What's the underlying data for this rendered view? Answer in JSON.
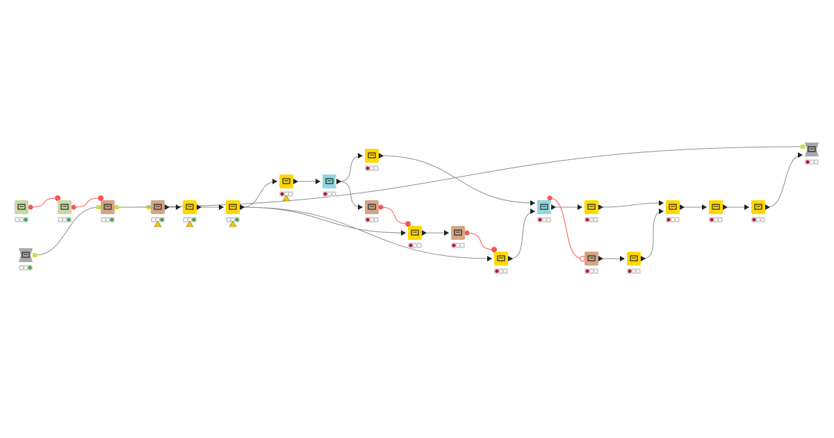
{
  "colors": {
    "source": "#c9d8a4",
    "manipulator": "#ffd800",
    "learner_predictor": "#d4a585",
    "loop": "#8ed8e0",
    "component_io": "#a8a8a8",
    "edge": "#8c8c8c",
    "flow_variable_edge": "#ff5050",
    "port_table": "#222222",
    "port_model": "#c8e03c",
    "status_red": "#c8103c",
    "status_green": "#3aa84a",
    "status_empty": "#ffffff",
    "warning": "#f0c800"
  },
  "nodes": [
    {
      "id": "n1",
      "kind": "source",
      "icon": "variable-source-icon",
      "status": "green"
    },
    {
      "id": "n2",
      "kind": "source",
      "icon": "variable-source-icon",
      "status": "green"
    },
    {
      "id": "n3",
      "kind": "learner_predictor",
      "icon": "model-learner-icon",
      "status": "green"
    },
    {
      "id": "n4",
      "kind": "component_io",
      "icon": "component-input-icon",
      "status": "green"
    },
    {
      "id": "n5",
      "kind": "learner_predictor",
      "icon": "predictor-icon",
      "status": "green",
      "warning": true
    },
    {
      "id": "n6",
      "kind": "manipulator",
      "icon": "splitter-icon",
      "status": "green",
      "warning": true
    },
    {
      "id": "n7",
      "kind": "manipulator",
      "icon": "column-rename-icon",
      "status": "green",
      "warning": true
    },
    {
      "id": "n8",
      "kind": "manipulator",
      "icon": "column-filter-icon",
      "status": "red",
      "warning": true
    },
    {
      "id": "n9",
      "kind": "loop",
      "icon": "loop-start-icon",
      "status": "red"
    },
    {
      "id": "n10",
      "kind": "manipulator",
      "icon": "group-by-icon",
      "status": "red"
    },
    {
      "id": "n11",
      "kind": "learner_predictor",
      "icon": "table-to-variable-icon",
      "status": "red"
    },
    {
      "id": "n12",
      "kind": "manipulator",
      "icon": "column-filter-icon",
      "status": "red"
    },
    {
      "id": "n13",
      "kind": "learner_predictor",
      "icon": "table-to-variable-icon",
      "status": "red"
    },
    {
      "id": "n14",
      "kind": "manipulator",
      "icon": "column-filter-icon",
      "status": "red"
    },
    {
      "id": "n15",
      "kind": "loop",
      "icon": "loop-end-icon",
      "status": "red"
    },
    {
      "id": "n16",
      "kind": "manipulator",
      "icon": "column-rename-icon",
      "status": "red"
    },
    {
      "id": "n17",
      "kind": "learner_predictor",
      "icon": "variable-to-table-icon",
      "status": "red"
    },
    {
      "id": "n18",
      "kind": "manipulator",
      "icon": "column-rename-icon",
      "status": "red"
    },
    {
      "id": "n19",
      "kind": "manipulator",
      "icon": "joiner-icon",
      "status": "red"
    },
    {
      "id": "n20",
      "kind": "manipulator",
      "icon": "pivot-icon",
      "status": "red"
    },
    {
      "id": "n21",
      "kind": "manipulator",
      "icon": "column-rename-icon",
      "status": "red"
    },
    {
      "id": "n22",
      "kind": "component_io",
      "icon": "component-output-icon",
      "status": "red"
    }
  ],
  "edges": [
    {
      "from": "n1",
      "to": "n2",
      "type": "flow"
    },
    {
      "from": "n2",
      "to": "n3",
      "type": "flow"
    },
    {
      "from": "n4",
      "to": "n3",
      "type": "model"
    },
    {
      "from": "n3",
      "to": "n5",
      "type": "model"
    },
    {
      "from": "n3",
      "to": "n22",
      "type": "model"
    },
    {
      "from": "n5",
      "to": "n6",
      "type": "table"
    },
    {
      "from": "n6",
      "to": "n7",
      "type": "table"
    },
    {
      "from": "n7",
      "to": "n8",
      "type": "table"
    },
    {
      "from": "n7",
      "to": "n12",
      "type": "table"
    },
    {
      "from": "n7",
      "to": "n14",
      "type": "table"
    },
    {
      "from": "n8",
      "to": "n9",
      "type": "table"
    },
    {
      "from": "n9",
      "to": "n10",
      "type": "table"
    },
    {
      "from": "n9",
      "to": "n11",
      "type": "table"
    },
    {
      "from": "n11",
      "to": "n12",
      "type": "flow"
    },
    {
      "from": "n12",
      "to": "n13",
      "type": "table"
    },
    {
      "from": "n13",
      "to": "n14",
      "type": "flow"
    },
    {
      "from": "n10",
      "to": "n15",
      "type": "table"
    },
    {
      "from": "n14",
      "to": "n15",
      "type": "table"
    },
    {
      "from": "n15",
      "to": "n16",
      "type": "table"
    },
    {
      "from": "n15",
      "to": "n17",
      "type": "flow"
    },
    {
      "from": "n17",
      "to": "n18",
      "type": "table"
    },
    {
      "from": "n16",
      "to": "n19",
      "type": "table"
    },
    {
      "from": "n18",
      "to": "n19",
      "type": "table"
    },
    {
      "from": "n19",
      "to": "n20",
      "type": "table"
    },
    {
      "from": "n20",
      "to": "n21",
      "type": "table"
    },
    {
      "from": "n21",
      "to": "n22",
      "type": "table"
    }
  ]
}
